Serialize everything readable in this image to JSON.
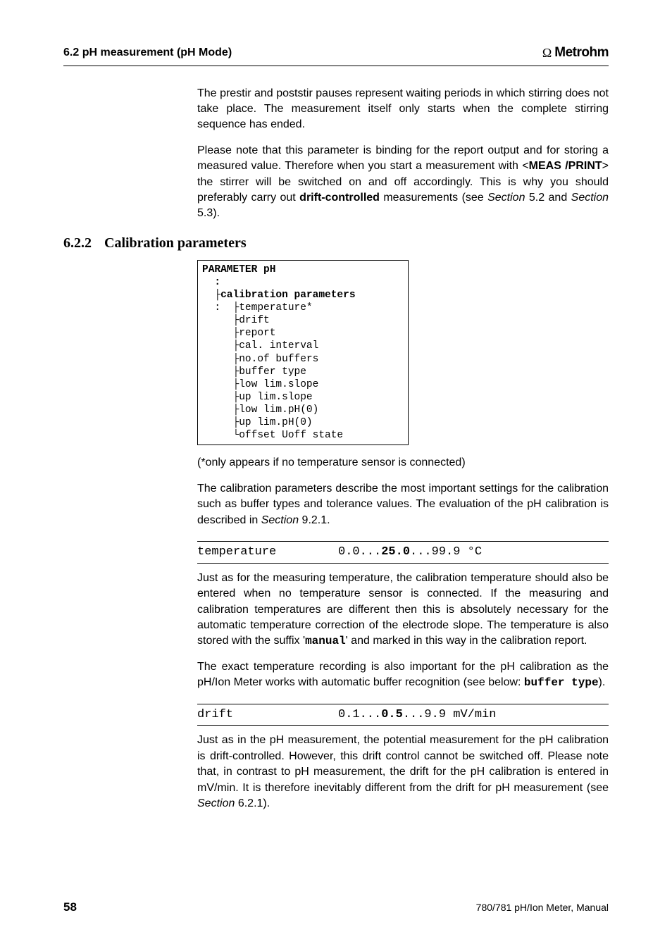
{
  "header": {
    "section_ref": "6.2 pH measurement (pH Mode)",
    "brand_symbol": "Ω",
    "brand_name": "Metrohm"
  },
  "intro": {
    "p1": "The prestir and poststir pauses represent waiting periods in which stirring does not take place. The measurement itself only starts when the complete stirring sequence has ended.",
    "p2a": "Please note that this parameter is binding for the report output and for storing a measured value. Therefore when you start a measurement with <",
    "p2_key": "MEAS /PRINT",
    "p2b": "> the stirrer will be switched on and off accordingly. This is why you should preferably carry out ",
    "p2_bold": "drift-controlled",
    "p2c": " measurements (see ",
    "p2_ref1": "Section",
    "p2d": " 5.2 and ",
    "p2_ref2": "Section",
    "p2e": " 5.3)."
  },
  "section": {
    "number": "6.2.2",
    "title": "Calibration parameters"
  },
  "codebox": {
    "l1": "PARAMETER pH",
    "l2": "  :",
    "l3a": "  ├",
    "l3b": "calibration parameters",
    "l4": "  :  ├temperature*",
    "l5": "     ├drift",
    "l6": "     ├report",
    "l7": "     ├cal. interval",
    "l8": "     ├no.of buffers",
    "l9": "     ├buffer type",
    "l10": "     ├low lim.slope",
    "l11": "     ├up lim.slope",
    "l12": "     ├low lim.pH(0)",
    "l13": "     ├up lim.pH(0)",
    "l14": "     └offset Uoff state"
  },
  "after_box": {
    "note": "(*only appears if no temperature sensor is connected)",
    "p1a": "The calibration parameters describe the most important settings for the calibration such as buffer types and tolerance values. The evaluation of the pH calibration is described in ",
    "p1_ref": "Section",
    "p1b": " 9.2.1."
  },
  "param_temp": {
    "key": "temperature",
    "v1": "0.0...",
    "vb": "25.0",
    "v2": "...99.9 °C",
    "p1a": " Just as for the measuring temperature, the calibration temperature should also be entered when no temperature sensor is connected. If the measuring and calibration temperatures are different then this is absolutely necessary for the automatic temperature correction of the electrode slope. The temperature is also stored with the suffix '",
    "p1_mono": "manual",
    "p1b": "' and marked in this way in the calibration report.",
    "p2a": "The exact temperature recording is also important for the pH calibration as the pH/Ion Meter works with automatic buffer recognition (see below: ",
    "p2_mono": "buffer type",
    "p2b": ")."
  },
  "param_drift": {
    "key": "drift",
    "v1": "0.1...",
    "vb": "0.5",
    "v2": "...9.9 mV/min",
    "p1a": "Just as in the pH measurement, the potential measurement for the pH calibration is drift-controlled. However, this drift control cannot be switched off. Please note that, in contrast to pH measurement, the drift for the pH calibration is entered in mV/min. It is therefore inevitably different from the drift for pH measurement (see ",
    "p1_ref": "Section",
    "p1b": " 6.2.1)."
  },
  "footer": {
    "page": "58",
    "right": "780/781 pH/Ion Meter, Manual"
  }
}
